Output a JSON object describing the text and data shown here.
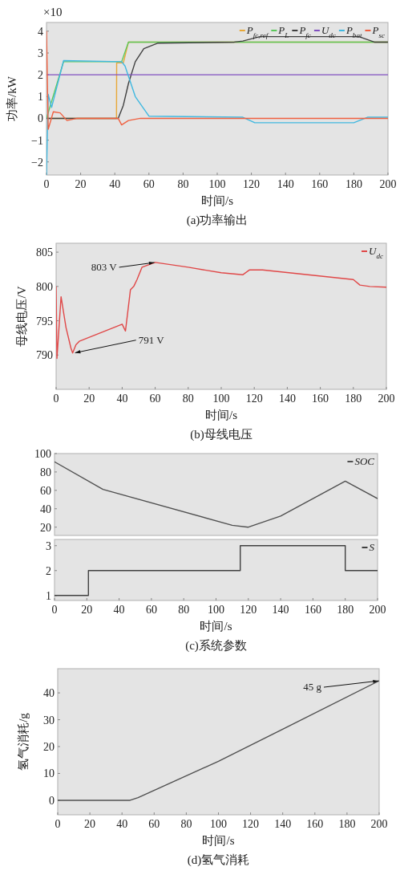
{
  "chart_data": [
    {
      "type": "line",
      "title": "(a)功率输出",
      "xlabel": "时间/s",
      "ylabel": "功率/kW",
      "annotations": [
        "×10"
      ],
      "xlim": [
        0,
        200
      ],
      "xticks": [
        0,
        20,
        40,
        60,
        80,
        100,
        120,
        140,
        160,
        180,
        200
      ],
      "ylim": [
        -2.6,
        4.4
      ],
      "yticks": [
        -2,
        -1,
        0,
        1,
        2,
        3,
        4
      ],
      "legend": "top right",
      "series": [
        {
          "name": "P$_{fc,ref}$",
          "color": "#e8a838",
          "x": [
            0,
            10,
            41,
            41.1,
            45,
            48,
            200
          ],
          "values": [
            0,
            0,
            0,
            2.55,
            2.55,
            3.5,
            3.5
          ]
        },
        {
          "name": "P$_{L}$",
          "color": "#5cc85c",
          "x": [
            0,
            10,
            44,
            48,
            200
          ],
          "values": [
            0,
            2.6,
            2.6,
            3.5,
            3.5
          ]
        },
        {
          "name": "P$_{fc}$",
          "color": "#404040",
          "x": [
            0,
            42,
            45,
            48,
            52,
            57,
            65,
            110,
            115,
            125,
            183,
            192,
            200
          ],
          "values": [
            0,
            0,
            0.6,
            1.6,
            2.6,
            3.2,
            3.45,
            3.5,
            3.55,
            3.75,
            3.75,
            3.5,
            3.5
          ]
        },
        {
          "name": "U$_{dc}$",
          "color": "#8050c0",
          "x": [
            0,
            200
          ],
          "values": [
            2,
            2
          ]
        },
        {
          "name": "P$_{bat}$",
          "color": "#40b8e0",
          "x": [
            0,
            1,
            3,
            10,
            44,
            46,
            52,
            60,
            115,
            122,
            180,
            188,
            200
          ],
          "values": [
            -2.6,
            1.1,
            0.5,
            2.65,
            2.6,
            2.4,
            1.0,
            0.1,
            0.05,
            -0.2,
            -0.2,
            0.05,
            0.05
          ]
        },
        {
          "name": "P$_{sc}$",
          "color": "#f06040",
          "x": [
            0,
            1,
            4,
            8,
            12,
            18,
            42,
            44,
            48,
            55,
            200
          ],
          "values": [
            4.0,
            -0.5,
            0.3,
            0.25,
            -0.1,
            0,
            0,
            -0.3,
            -0.1,
            0,
            0
          ]
        }
      ]
    },
    {
      "type": "line",
      "title": "(b)母线电压",
      "xlabel": "时间/s",
      "ylabel": "母线电压/V",
      "xlim": [
        0,
        200
      ],
      "xticks": [
        0,
        20,
        40,
        60,
        80,
        100,
        120,
        140,
        160,
        180,
        200
      ],
      "ylim": [
        785,
        806.3
      ],
      "yticks": [
        790,
        795,
        800,
        805
      ],
      "legend": "top right",
      "annotations": [
        {
          "text": "803 V",
          "x": 60,
          "y": 803.5
        },
        {
          "text": "791 V",
          "x": 11,
          "y": 790.3
        }
      ],
      "series": [
        {
          "name": "U$_{dc}$",
          "color": "#e04848",
          "x": [
            0,
            0.5,
            3,
            6,
            9,
            10,
            12,
            14,
            40,
            42,
            45,
            47,
            49,
            52,
            60,
            80,
            100,
            113,
            117,
            125,
            180,
            184,
            190,
            200
          ],
          "values": [
            800,
            789.5,
            798.5,
            794,
            791,
            790.3,
            791.5,
            792,
            794.5,
            793.5,
            799.5,
            800,
            801,
            802.8,
            803.5,
            802.8,
            802,
            801.7,
            802.4,
            802.4,
            801,
            800.2,
            800,
            799.9
          ]
        }
      ]
    },
    {
      "type": "line",
      "tick_labels": "y",
      "xlim": [
        0,
        200
      ],
      "ylim": [
        11,
        100
      ],
      "yticks": [
        20,
        40,
        60,
        80,
        100
      ],
      "legend": "top right",
      "series": [
        {
          "name": "SOC",
          "color": "#505050",
          "x": [
            0,
            30,
            110,
            120,
            140,
            180,
            200
          ],
          "values": [
            91,
            61,
            22,
            20,
            32,
            70,
            51
          ]
        }
      ]
    },
    {
      "type": "step",
      "title": "(c)系统参数",
      "xlabel": "时间/s",
      "xlim": [
        0,
        200
      ],
      "xticks": [
        0,
        20,
        40,
        60,
        80,
        100,
        120,
        140,
        160,
        180,
        200
      ],
      "ylim": [
        0.8,
        3.25
      ],
      "yticks": [
        1,
        2,
        3
      ],
      "legend": "top right",
      "series": [
        {
          "name": "S",
          "color": "#404040",
          "x": [
            0,
            21,
            115,
            180,
            200
          ],
          "values": [
            1,
            2,
            3,
            2,
            2
          ]
        }
      ]
    },
    {
      "type": "line",
      "title": "(d)氢气消耗",
      "xlabel": "时间/s",
      "ylabel": "氢气消耗/g",
      "xlim": [
        0,
        200
      ],
      "xticks": [
        0,
        20,
        40,
        60,
        80,
        100,
        120,
        140,
        160,
        180,
        200
      ],
      "ylim": [
        -5.4,
        49
      ],
      "yticks": [
        0,
        10,
        20,
        30,
        40
      ],
      "annotations": [
        {
          "text": "45 g",
          "x": 200,
          "y": 44.5
        }
      ],
      "series": [
        {
          "color": "#505050",
          "x": [
            0,
            45,
            50,
            100,
            140,
            200
          ],
          "values": [
            0,
            0,
            1,
            14.5,
            26.5,
            44.5
          ]
        }
      ]
    }
  ]
}
